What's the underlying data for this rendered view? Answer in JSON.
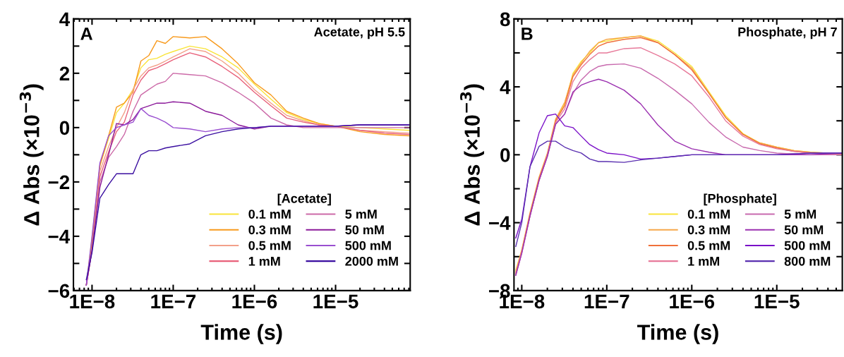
{
  "chart_data": [
    {
      "type": "line",
      "xlabel": "Time (s)",
      "ylabel": "Δ Abs (×10$^{−3}$)",
      "annotations": [
        "A",
        "Acetate, pH 5.5"
      ],
      "legend_title": "[Acetate]",
      "legend": "bottom right",
      "log": "x",
      "xlim": [
        5.9e-09,
        8.3e-05
      ],
      "xticks": [
        {
          "value": 1e-08,
          "label": "1E−8"
        },
        {
          "value": 1e-07,
          "label": "1E−7"
        },
        {
          "value": 1e-06,
          "label": "1E−6"
        },
        {
          "value": 1e-05,
          "label": "1E−5"
        }
      ],
      "ylim": [
        -6,
        4
      ],
      "yticks": [
        {
          "value": -6,
          "label": "−6"
        },
        {
          "value": -5,
          "label": null
        },
        {
          "value": -4,
          "label": "−4"
        },
        {
          "value": -3,
          "label": null
        },
        {
          "value": -2,
          "label": "−2"
        },
        {
          "value": -1,
          "label": null
        },
        0,
        {
          "value": 1,
          "label": null
        },
        2,
        {
          "value": 3,
          "label": null
        },
        4
      ],
      "x": [
        8.5e-09,
        1e-08,
        1.25e-08,
        1.6e-08,
        2e-08,
        2.5e-08,
        3.2e-08,
        4e-08,
        5e-08,
        6.3e-08,
        8e-08,
        1e-07,
        1.6e-07,
        2.5e-07,
        4e-07,
        6.3e-07,
        1e-06,
        1.6e-06,
        2.5e-06,
        4e-06,
        6.3e-06,
        1e-05,
        2e-05,
        4e-05,
        8e-05
      ],
      "series": [
        {
          "name": "0.1 mM",
          "color": "#f9e43a",
          "values": [
            -5.8,
            -4.05,
            -1.4,
            -0.4,
            0.55,
            0.9,
            1.4,
            2.2,
            2.5,
            2.55,
            2.7,
            2.8,
            3.0,
            2.9,
            2.6,
            2.2,
            1.6,
            1.05,
            0.55,
            0.3,
            0.15,
            0.05,
            0.0,
            -0.05,
            -0.1
          ]
        },
        {
          "name": "0.3 mM",
          "color": "#f89a1c",
          "values": [
            -5.8,
            -4.2,
            -1.4,
            -0.3,
            0.75,
            0.9,
            1.3,
            2.45,
            2.65,
            3.2,
            3.1,
            3.35,
            3.3,
            3.35,
            2.9,
            2.35,
            1.65,
            1.2,
            0.6,
            0.35,
            0.15,
            0.05,
            -0.15,
            -0.25,
            -0.3
          ]
        },
        {
          "name": "0.5 mM",
          "color": "#f3a08a",
          "values": [
            -5.8,
            -4.5,
            -1.6,
            -0.7,
            0.0,
            0.55,
            1.4,
            1.9,
            2.2,
            2.3,
            2.45,
            2.6,
            2.9,
            2.8,
            2.45,
            2.0,
            1.4,
            0.9,
            0.45,
            0.25,
            0.1,
            0.05,
            -0.1,
            -0.15,
            -0.2
          ]
        },
        {
          "name": "1 mM",
          "color": "#e8607a",
          "values": [
            -5.8,
            -4.5,
            -1.8,
            -0.9,
            -0.15,
            0.2,
            1.2,
            1.75,
            2.1,
            2.2,
            2.35,
            2.5,
            2.75,
            2.6,
            2.25,
            1.85,
            1.3,
            0.8,
            0.35,
            0.2,
            0.1,
            0.05,
            -0.1,
            -0.2,
            -0.25
          ]
        },
        {
          "name": "5 mM",
          "color": "#cc6aa8",
          "values": [
            -5.8,
            -4.5,
            -2.0,
            -1.1,
            -0.7,
            -0.25,
            0.6,
            1.2,
            1.4,
            1.6,
            1.7,
            2.0,
            1.95,
            1.9,
            1.65,
            1.3,
            0.9,
            0.35,
            0.1,
            0.0,
            0.0,
            0.0,
            0.0,
            0.0,
            0.0
          ]
        },
        {
          "name": "50 mM",
          "color": "#8b1a9a",
          "values": [
            -5.8,
            -4.5,
            -2.2,
            -1.0,
            0.15,
            0.1,
            0.3,
            0.7,
            0.8,
            0.9,
            0.9,
            0.95,
            0.9,
            0.6,
            0.45,
            0.1,
            -0.05,
            0.05,
            0.05,
            0.05,
            0.05,
            0.05,
            0.1,
            0.1,
            0.1
          ]
        },
        {
          "name": "500 mM",
          "color": "#9a4fd0",
          "values": [
            -5.8,
            -4.0,
            -1.3,
            -0.3,
            0.0,
            0.1,
            0.2,
            0.7,
            0.45,
            0.35,
            0.2,
            0.0,
            -0.05,
            -0.15,
            -0.05,
            0.0,
            0.0,
            0.05,
            0.05,
            0.05,
            0.05,
            0.05,
            0.1,
            0.1,
            0.1
          ]
        },
        {
          "name": "2000 mM",
          "color": "#3a0ea0",
          "values": [
            -5.6,
            -4.6,
            -2.6,
            -2.1,
            -1.7,
            -1.7,
            -1.7,
            -1.0,
            -0.85,
            -0.85,
            -0.75,
            -0.7,
            -0.6,
            -0.3,
            -0.15,
            -0.05,
            0.0,
            0.05,
            0.05,
            0.05,
            0.05,
            0.05,
            0.1,
            0.1,
            0.1
          ]
        }
      ]
    },
    {
      "type": "line",
      "xlabel": "Time (s)",
      "ylabel": "Δ Abs (×10$^{−3}$)",
      "annotations": [
        "B",
        "Phosphate, pH 7"
      ],
      "legend_title": "[Phosphate]",
      "legend": "bottom right",
      "log": "x",
      "xlim": [
        8.1e-09,
        5.9e-05
      ],
      "xticks": [
        {
          "value": 1e-08,
          "label": "1E−8"
        },
        {
          "value": 1e-07,
          "label": "1E−7"
        },
        {
          "value": 1e-06,
          "label": "1E−6"
        },
        {
          "value": 1e-05,
          "label": "1E−5"
        }
      ],
      "ylim": [
        -8,
        8
      ],
      "yticks": [
        {
          "value": -8,
          "label": "−8"
        },
        {
          "value": -6,
          "label": null
        },
        {
          "value": -4,
          "label": "−4"
        },
        {
          "value": -2,
          "label": null
        },
        0,
        {
          "value": 2,
          "label": null
        },
        4,
        {
          "value": 6,
          "label": null
        },
        8
      ],
      "x": [
        8.5e-09,
        1e-08,
        1.25e-08,
        1.6e-08,
        2e-08,
        2.5e-08,
        3.2e-08,
        4e-08,
        5e-08,
        6.3e-08,
        8e-08,
        1e-07,
        1.6e-07,
        2.5e-07,
        4e-07,
        6.3e-07,
        1e-06,
        1.6e-06,
        2.5e-06,
        4e-06,
        6.3e-06,
        1e-05,
        1.6e-05,
        2.5e-05,
        5.8e-05
      ],
      "series": [
        {
          "name": "0.1 mM",
          "color": "#f9e43a",
          "values": [
            -6.8,
            -5.6,
            -3.5,
            -1.4,
            0.0,
            2.0,
            3.0,
            4.8,
            5.5,
            6.0,
            6.6,
            6.7,
            6.9,
            7.0,
            6.7,
            6.0,
            5.2,
            3.7,
            2.3,
            1.25,
            0.7,
            0.45,
            0.25,
            0.15,
            0.05
          ]
        },
        {
          "name": "0.3 mM",
          "color": "#f7a84a",
          "values": [
            -6.9,
            -5.6,
            -3.4,
            -1.3,
            0.1,
            2.1,
            3.1,
            4.7,
            5.4,
            6.1,
            6.6,
            6.8,
            6.9,
            7.0,
            6.6,
            5.9,
            5.1,
            3.6,
            2.2,
            1.2,
            0.7,
            0.45,
            0.25,
            0.15,
            0.05
          ]
        },
        {
          "name": "0.5 mM",
          "color": "#f0703a",
          "values": [
            -7.0,
            -5.7,
            -3.5,
            -1.4,
            0.0,
            2.0,
            2.9,
            4.6,
            5.3,
            5.9,
            6.4,
            6.6,
            6.8,
            6.9,
            6.6,
            5.9,
            5.0,
            3.6,
            2.2,
            1.2,
            0.65,
            0.4,
            0.2,
            0.1,
            0.0
          ]
        },
        {
          "name": "1 mM",
          "color": "#e77a9a",
          "values": [
            -7.0,
            -5.7,
            -3.6,
            -1.5,
            0.0,
            1.9,
            2.7,
            4.3,
            5.1,
            5.6,
            6.0,
            6.0,
            6.25,
            6.3,
            5.85,
            5.35,
            4.65,
            3.4,
            2.0,
            1.1,
            0.6,
            0.35,
            0.2,
            0.1,
            0.0
          ]
        },
        {
          "name": "5 mM",
          "color": "#c86aae",
          "values": [
            -7.1,
            -5.8,
            -3.6,
            -1.5,
            -0.1,
            1.8,
            2.4,
            3.6,
            4.4,
            4.9,
            5.2,
            5.3,
            5.35,
            5.1,
            4.5,
            3.8,
            3.0,
            1.9,
            1.05,
            0.45,
            0.25,
            0.1,
            0.05,
            0.0,
            0.0
          ]
        },
        {
          "name": "50 mM",
          "color": "#9b30b0",
          "values": [
            -7.1,
            -5.8,
            -3.6,
            -1.5,
            -0.1,
            1.8,
            2.4,
            3.7,
            4.1,
            4.3,
            4.45,
            4.3,
            3.8,
            3.0,
            1.75,
            0.8,
            0.35,
            0.15,
            0.0,
            0.0,
            0.0,
            0.0,
            0.0,
            0.0,
            0.1
          ]
        },
        {
          "name": "500 mM",
          "color": "#7a10c8",
          "values": [
            -4.9,
            -3.8,
            -0.7,
            1.3,
            2.3,
            2.4,
            1.7,
            1.6,
            1.1,
            0.6,
            0.3,
            0.1,
            0.0,
            -0.25,
            -0.2,
            -0.1,
            0.0,
            0.0,
            0.0,
            0.0,
            0.0,
            0.0,
            0.05,
            0.1,
            0.1
          ]
        },
        {
          "name": "800 mM",
          "color": "#5a30b0",
          "values": [
            -5.4,
            -4.0,
            -0.7,
            0.5,
            0.8,
            0.8,
            0.45,
            0.25,
            0.1,
            -0.25,
            -0.4,
            -0.4,
            -0.45,
            -0.3,
            -0.2,
            -0.1,
            0.0,
            0.0,
            0.0,
            0.0,
            0.0,
            0.0,
            0.05,
            0.1,
            0.1
          ]
        }
      ]
    }
  ]
}
